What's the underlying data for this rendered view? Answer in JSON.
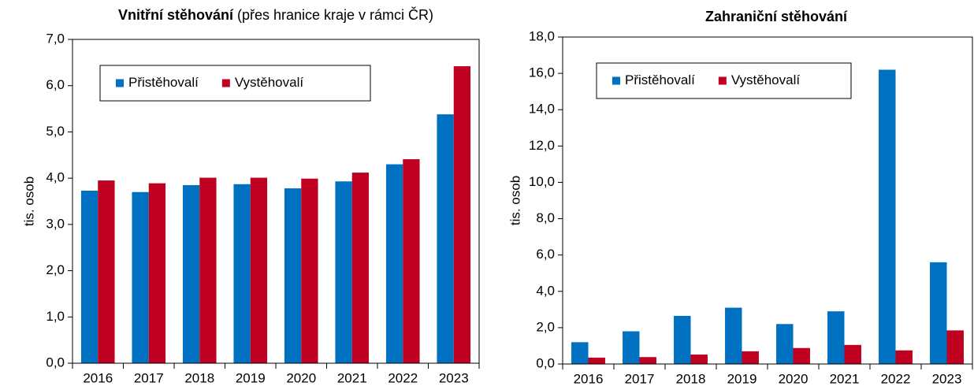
{
  "chart_data": [
    {
      "type": "bar",
      "title": "Vnitřní stěhování",
      "subtitle": "(přes hranice kraje v rámci ČR)",
      "y_label": "tis. osob",
      "categories": [
        "2016",
        "2017",
        "2018",
        "2019",
        "2020",
        "2021",
        "2022",
        "2023"
      ],
      "series": [
        {
          "name": "Přistěhovalí",
          "color": "#0070c0",
          "values": [
            3.73,
            3.7,
            3.85,
            3.87,
            3.78,
            3.93,
            4.3,
            5.38
          ]
        },
        {
          "name": "Vystěhovalí",
          "color": "#c00020",
          "values": [
            3.95,
            3.89,
            4.01,
            4.01,
            3.99,
            4.12,
            4.41,
            6.42
          ]
        }
      ],
      "ylim": [
        0,
        7
      ],
      "yticks": [
        {
          "value": 0,
          "label": "0,0"
        },
        {
          "value": 1,
          "label": "1,0"
        },
        {
          "value": 2,
          "label": "2,0"
        },
        {
          "value": 3,
          "label": "3,0"
        },
        {
          "value": 4,
          "label": "4,0"
        },
        {
          "value": 5,
          "label": "5,0"
        },
        {
          "value": 6,
          "label": "6,0"
        },
        {
          "value": 7,
          "label": "7,0"
        }
      ],
      "grid": false,
      "legend": "top-left"
    },
    {
      "type": "bar",
      "title": "Zahraniční stěhování",
      "y_label": "tis. osob",
      "categories": [
        "2016",
        "2017",
        "2018",
        "2019",
        "2020",
        "2021",
        "2022",
        "2023"
      ],
      "series": [
        {
          "name": "Přistěhovalí",
          "color": "#0070c0",
          "values": [
            1.2,
            1.8,
            2.65,
            3.1,
            2.2,
            2.9,
            16.2,
            5.6
          ]
        },
        {
          "name": "Vystěhovalí",
          "color": "#c00020",
          "values": [
            0.35,
            0.38,
            0.52,
            0.7,
            0.88,
            1.05,
            0.75,
            1.85
          ]
        }
      ],
      "ylim": [
        0,
        18
      ],
      "yticks": [
        {
          "value": 0,
          "label": "0,0"
        },
        {
          "value": 2,
          "label": "2,0"
        },
        {
          "value": 4,
          "label": "4,0"
        },
        {
          "value": 6,
          "label": "6,0"
        },
        {
          "value": 8,
          "label": "8,0"
        },
        {
          "value": 10,
          "label": "10,0"
        },
        {
          "value": 12,
          "label": "12,0"
        },
        {
          "value": 14,
          "label": "14,0"
        },
        {
          "value": 16,
          "label": "16,0"
        },
        {
          "value": 18,
          "label": "18,0"
        }
      ],
      "grid": false,
      "legend": "top-left"
    }
  ]
}
